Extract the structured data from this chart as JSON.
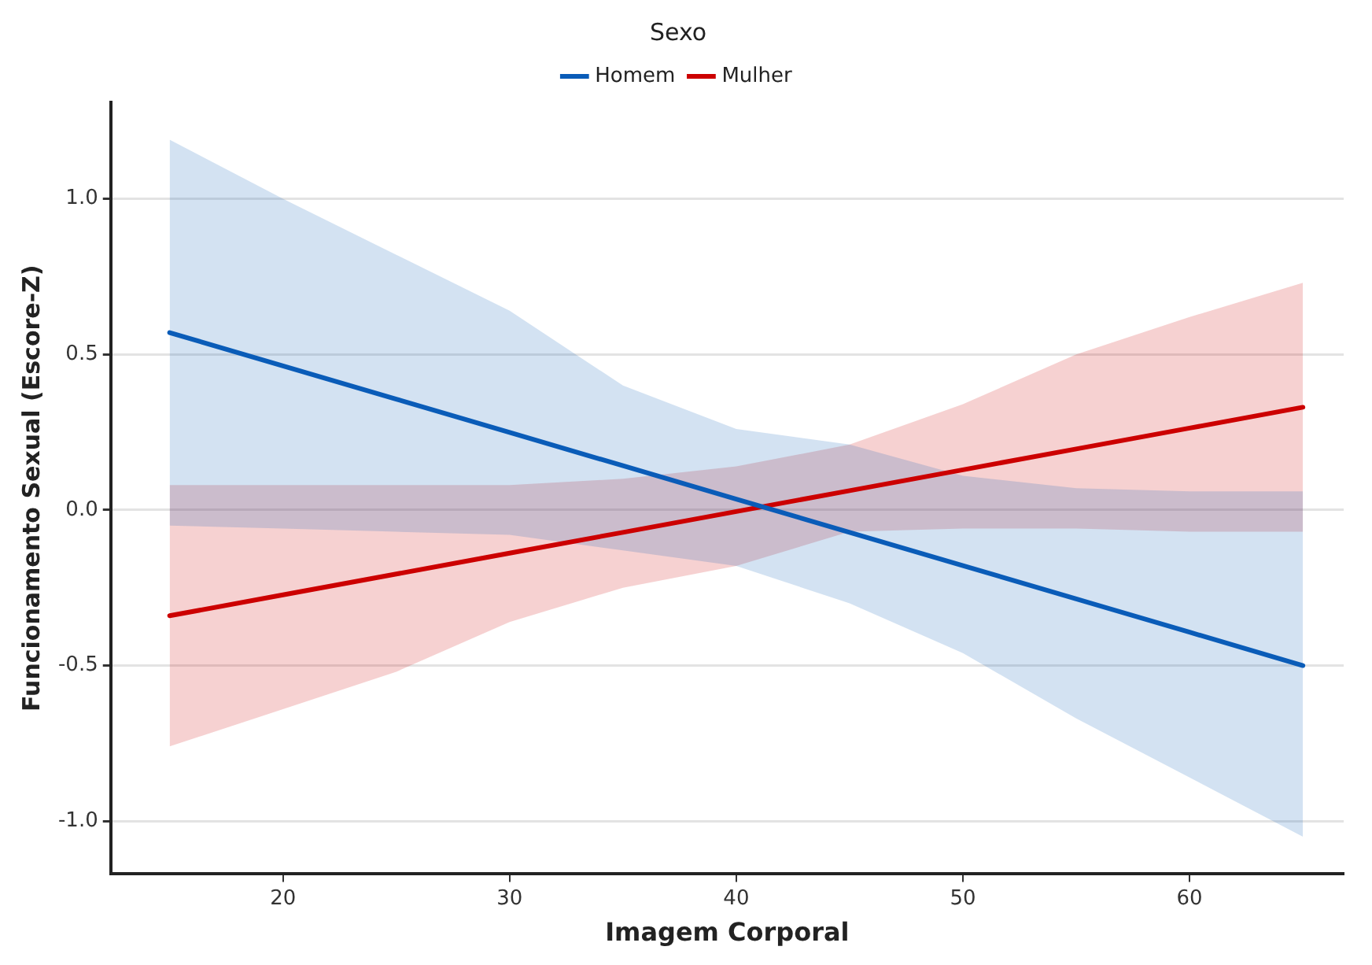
{
  "chart_data": {
    "type": "line",
    "xlabel": "Imagem Corporal",
    "ylabel": "Funcionamento Sexual (Escore-Z)",
    "legend_title": "Sexo",
    "legend": "top",
    "grid": "y",
    "marker": "none",
    "line_style": "solid",
    "x": [
      15,
      20,
      25,
      30,
      35,
      40,
      45,
      50,
      55,
      60,
      65
    ],
    "xlim": [
      12.4,
      66.8
    ],
    "xticks": [
      20,
      30,
      40,
      50,
      60
    ],
    "ylim": [
      -1.17,
      1.31
    ],
    "yticks": [
      {
        "value": -1,
        "label": "-1.0"
      },
      {
        "value": -0.5,
        "label": "-0.5"
      },
      {
        "value": 0,
        "label": "0.0"
      },
      {
        "value": 0.5,
        "label": "0.5"
      },
      {
        "value": 1,
        "label": "1.0"
      }
    ],
    "series": [
      {
        "name": "Homem",
        "color": "#0a5cb8",
        "values": [
          0.57,
          0.463,
          0.356,
          0.249,
          0.142,
          0.035,
          -0.072,
          -0.179,
          -0.286,
          -0.393,
          -0.5
        ],
        "upper": [
          1.19,
          1.0,
          0.82,
          0.64,
          0.4,
          0.26,
          0.21,
          0.11,
          0.07,
          0.06,
          0.06
        ],
        "lower": [
          -0.05,
          -0.06,
          -0.07,
          -0.08,
          -0.13,
          -0.18,
          -0.3,
          -0.46,
          -0.67,
          -0.86,
          -1.05
        ]
      },
      {
        "name": "Mulher",
        "color": "#cc0000",
        "values": [
          -0.34,
          -0.273,
          -0.206,
          -0.139,
          -0.072,
          -0.005,
          0.062,
          0.129,
          0.196,
          0.263,
          0.33
        ],
        "upper": [
          0.08,
          0.08,
          0.08,
          0.08,
          0.1,
          0.14,
          0.21,
          0.34,
          0.5,
          0.62,
          0.73
        ],
        "lower": [
          -0.76,
          -0.64,
          -0.52,
          -0.36,
          -0.25,
          -0.18,
          -0.07,
          -0.06,
          -0.06,
          -0.07,
          -0.07
        ]
      }
    ]
  }
}
